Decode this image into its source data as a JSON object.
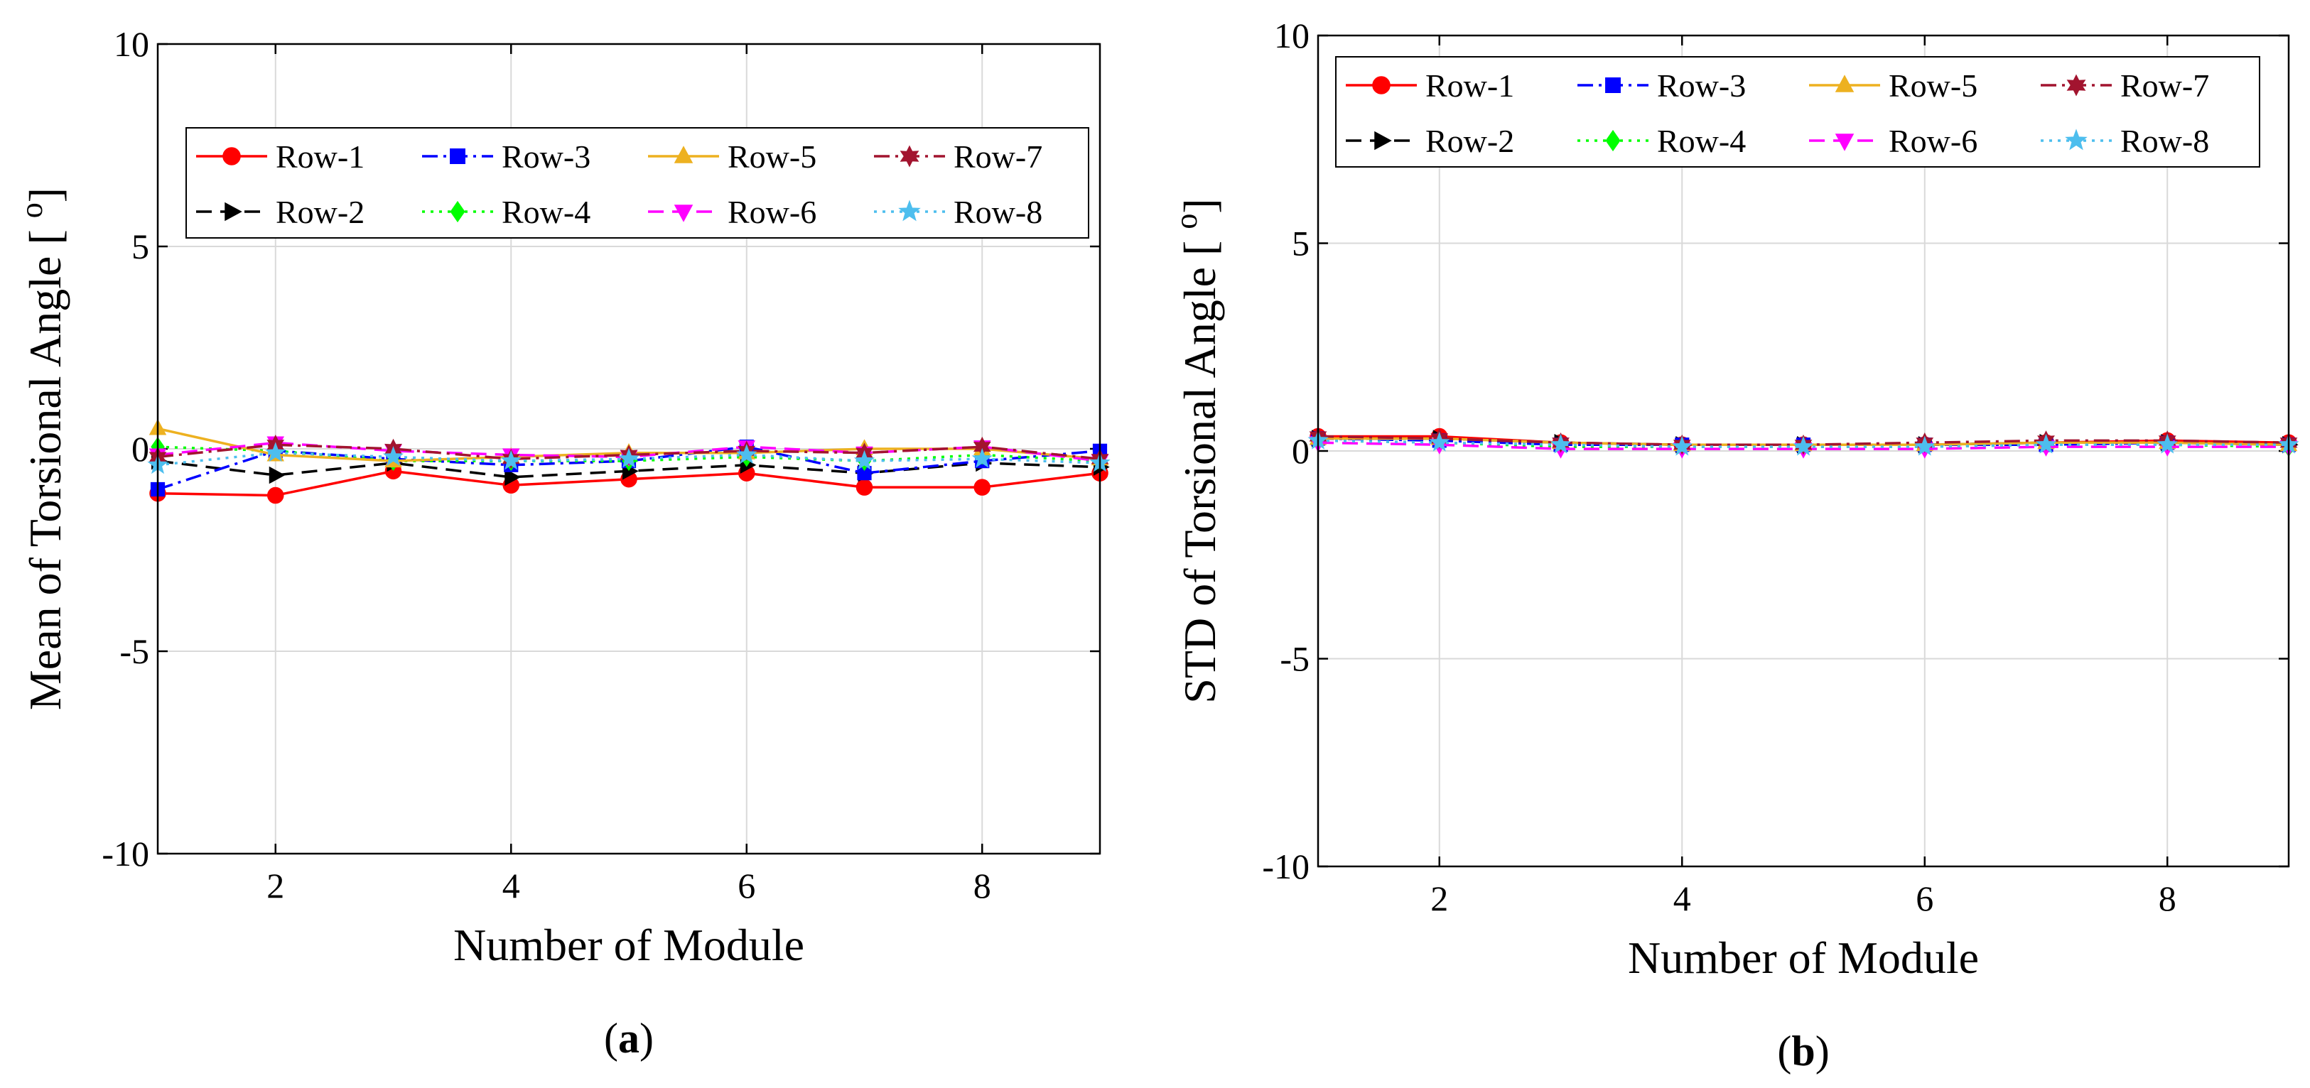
{
  "legend_entries": [
    "Row-1",
    "Row-3",
    "Row-5",
    "Row-7",
    "Row-2",
    "Row-4",
    "Row-6",
    "Row-8"
  ],
  "series_styles": {
    "Row-1": {
      "color": "#ff0000",
      "marker": "circle",
      "dash": "solid"
    },
    "Row-2": {
      "color": "#000000",
      "marker": "triangle-right",
      "dash": "dashed"
    },
    "Row-3": {
      "color": "#0000ff",
      "marker": "square",
      "dash": "dashdot"
    },
    "Row-4": {
      "color": "#00ff00",
      "marker": "diamond",
      "dash": "dotted"
    },
    "Row-5": {
      "color": "#edb120",
      "marker": "triangle-up",
      "dash": "solid"
    },
    "Row-6": {
      "color": "#ff00ff",
      "marker": "triangle-down",
      "dash": "dashed"
    },
    "Row-7": {
      "color": "#a2142f",
      "marker": "hexagram",
      "dash": "dashdot"
    },
    "Row-8": {
      "color": "#4dbeee",
      "marker": "pentagram",
      "dash": "dotted"
    }
  },
  "chart_data": [
    {
      "type": "line",
      "caption": "(a)",
      "xlabel": "Number of Module",
      "ylabel": "Mean of Torsional Angle [ ",
      "ylabel_unit": "o",
      "ylabel_close": "]",
      "xlim": [
        1,
        9
      ],
      "ylim": [
        -10,
        10
      ],
      "xticks": [
        2,
        4,
        6,
        8
      ],
      "yticks": [
        -10,
        -5,
        0,
        5,
        10
      ],
      "grid": true,
      "legend_position": "upper",
      "x": [
        1,
        2,
        3,
        4,
        5,
        6,
        7,
        8,
        9
      ],
      "series": [
        {
          "name": "Row-1",
          "values": [
            -1.1,
            -1.15,
            -0.55,
            -0.9,
            -0.75,
            -0.6,
            -0.95,
            -0.95,
            -0.6
          ]
        },
        {
          "name": "Row-2",
          "values": [
            -0.3,
            -0.65,
            -0.35,
            -0.7,
            -0.55,
            -0.4,
            -0.6,
            -0.35,
            -0.45
          ]
        },
        {
          "name": "Row-3",
          "values": [
            -1.0,
            -0.05,
            -0.25,
            -0.4,
            -0.3,
            0.05,
            -0.6,
            -0.3,
            -0.05
          ]
        },
        {
          "name": "Row-4",
          "values": [
            0.05,
            -0.05,
            -0.3,
            -0.3,
            -0.3,
            -0.2,
            -0.3,
            -0.15,
            -0.3
          ]
        },
        {
          "name": "Row-5",
          "values": [
            0.5,
            -0.15,
            -0.3,
            -0.2,
            -0.1,
            -0.1,
            0.0,
            0.0,
            -0.25
          ]
        },
        {
          "name": "Row-6",
          "values": [
            -0.15,
            0.15,
            -0.05,
            -0.15,
            -0.2,
            0.05,
            -0.1,
            0.05,
            -0.3
          ]
        },
        {
          "name": "Row-7",
          "values": [
            -0.2,
            0.1,
            0.0,
            -0.25,
            -0.15,
            -0.05,
            -0.1,
            0.05,
            -0.25
          ]
        },
        {
          "name": "Row-8",
          "values": [
            -0.4,
            -0.1,
            -0.2,
            -0.3,
            -0.25,
            -0.15,
            -0.3,
            -0.25,
            -0.35
          ]
        }
      ]
    },
    {
      "type": "line",
      "caption": "(b)",
      "xlabel": "Number of Module",
      "ylabel": "STD of Torsional Angle [ ",
      "ylabel_unit": "o",
      "ylabel_close": "]",
      "xlim": [
        1,
        9
      ],
      "ylim": [
        -10,
        10
      ],
      "xticks": [
        2,
        4,
        6,
        8
      ],
      "yticks": [
        -10,
        -5,
        0,
        5,
        10
      ],
      "grid": true,
      "legend_position": "top",
      "x": [
        1,
        2,
        3,
        4,
        5,
        6,
        7,
        8,
        9
      ],
      "series": [
        {
          "name": "Row-1",
          "values": [
            0.35,
            0.35,
            0.2,
            0.15,
            0.15,
            0.15,
            0.2,
            0.25,
            0.2
          ]
        },
        {
          "name": "Row-2",
          "values": [
            0.3,
            0.3,
            0.2,
            0.15,
            0.15,
            0.15,
            0.2,
            0.2,
            0.15
          ]
        },
        {
          "name": "Row-3",
          "values": [
            0.3,
            0.25,
            0.15,
            0.15,
            0.15,
            0.15,
            0.15,
            0.2,
            0.15
          ]
        },
        {
          "name": "Row-4",
          "values": [
            0.25,
            0.2,
            0.1,
            0.1,
            0.1,
            0.1,
            0.15,
            0.15,
            0.1
          ]
        },
        {
          "name": "Row-5",
          "values": [
            0.3,
            0.3,
            0.2,
            0.15,
            0.15,
            0.15,
            0.2,
            0.2,
            0.15
          ]
        },
        {
          "name": "Row-6",
          "values": [
            0.2,
            0.15,
            0.05,
            0.05,
            0.05,
            0.05,
            0.1,
            0.1,
            0.1
          ]
        },
        {
          "name": "Row-7",
          "values": [
            0.35,
            0.3,
            0.2,
            0.15,
            0.15,
            0.2,
            0.25,
            0.25,
            0.2
          ]
        },
        {
          "name": "Row-8",
          "values": [
            0.25,
            0.2,
            0.15,
            0.1,
            0.1,
            0.1,
            0.15,
            0.15,
            0.15
          ]
        }
      ]
    }
  ]
}
